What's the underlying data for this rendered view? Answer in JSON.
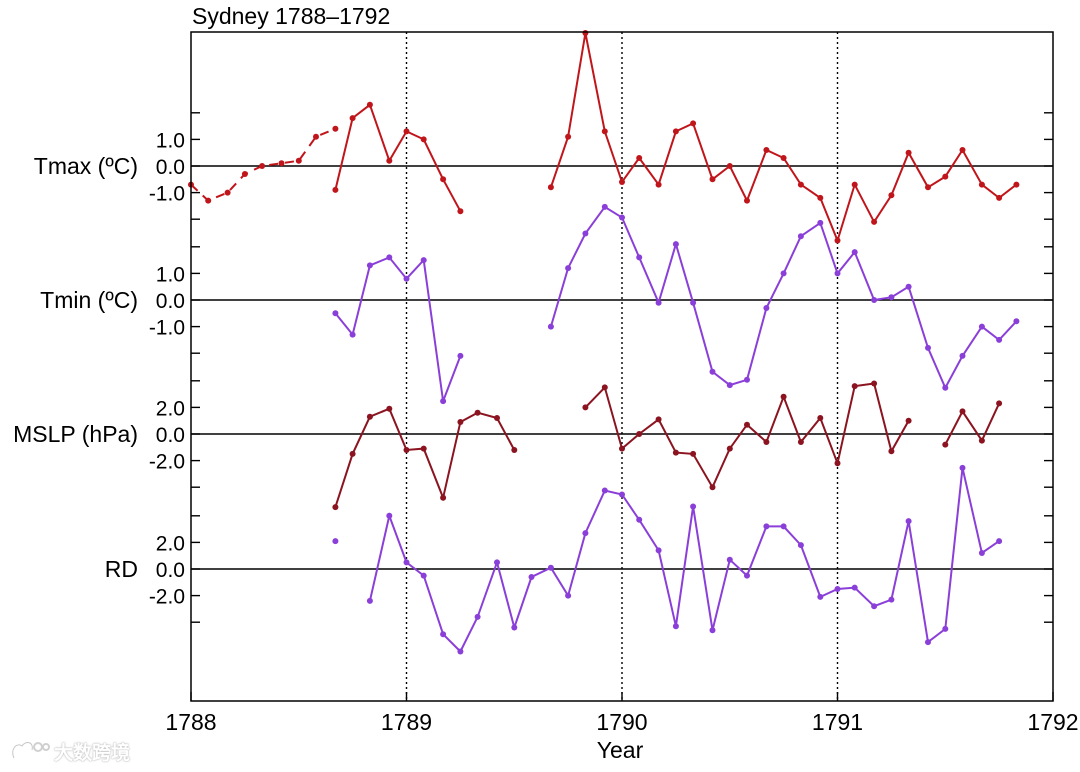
{
  "chart_data": {
    "type": "line",
    "title": "Sydney 1788–1792",
    "xlabel": "Year",
    "xlim": [
      1788,
      1792
    ],
    "x_ticks": [
      "1788",
      "1789",
      "1790",
      "1791",
      "1792"
    ],
    "vertical_reference_lines": [
      1789,
      1790,
      1791
    ],
    "panels": [
      {
        "label": "Tmax (ºC)",
        "y_ticks": [
          "1.0",
          "0.0",
          "-1.0"
        ],
        "color": "#c0161b",
        "dashed_segments": [
          [
            [
              1788.0,
              -0.7
            ],
            [
              1788.08,
              -1.3
            ],
            [
              1788.17,
              -1.0
            ],
            [
              1788.25,
              -0.3
            ],
            [
              1788.33,
              0.0
            ],
            [
              1788.42,
              0.1
            ],
            [
              1788.5,
              0.2
            ],
            [
              1788.58,
              1.1
            ],
            [
              1788.67,
              1.4
            ]
          ]
        ],
        "segments": [
          [
            [
              1788.67,
              -0.9
            ],
            [
              1788.75,
              1.8
            ],
            [
              1788.83,
              2.3
            ],
            [
              1788.92,
              0.2
            ],
            [
              1789.0,
              1.3
            ],
            [
              1789.08,
              1.0
            ],
            [
              1789.17,
              -0.5
            ],
            [
              1789.25,
              -1.7
            ]
          ],
          [
            [
              1789.67,
              -0.8
            ],
            [
              1789.75,
              1.1
            ],
            [
              1789.83,
              5.0
            ],
            [
              1789.92,
              1.3
            ],
            [
              1790.0,
              -0.6
            ],
            [
              1790.08,
              0.3
            ],
            [
              1790.17,
              -0.7
            ],
            [
              1790.25,
              1.3
            ],
            [
              1790.33,
              1.6
            ],
            [
              1790.42,
              -0.5
            ],
            [
              1790.5,
              0.0
            ],
            [
              1790.58,
              -1.3
            ],
            [
              1790.67,
              0.6
            ],
            [
              1790.75,
              0.3
            ],
            [
              1790.83,
              -0.7
            ],
            [
              1790.92,
              -1.2
            ],
            [
              1791.0,
              -2.8
            ],
            [
              1791.08,
              -0.7
            ],
            [
              1791.17,
              -2.1
            ],
            [
              1791.25,
              -1.1
            ],
            [
              1791.33,
              0.5
            ],
            [
              1791.42,
              -0.8
            ],
            [
              1791.5,
              -0.4
            ],
            [
              1791.58,
              0.6
            ],
            [
              1791.67,
              -0.7
            ],
            [
              1791.75,
              -1.2
            ],
            [
              1791.83,
              -0.7
            ]
          ]
        ]
      },
      {
        "label": "Tmin (ºC)",
        "y_ticks": [
          "1.0",
          "0.0",
          "-1.0"
        ],
        "color": "#8b3fd9",
        "dashed_segments": [],
        "segments": [
          [
            [
              1788.67,
              -0.5
            ],
            [
              1788.75,
              -1.3
            ],
            [
              1788.83,
              1.3
            ],
            [
              1788.92,
              1.6
            ],
            [
              1789.0,
              0.8
            ],
            [
              1789.08,
              1.5
            ],
            [
              1789.17,
              -3.8
            ],
            [
              1789.25,
              -2.1
            ]
          ],
          [
            [
              1789.67,
              -1.0
            ],
            [
              1789.75,
              1.2
            ],
            [
              1789.83,
              2.5
            ],
            [
              1789.92,
              3.5
            ],
            [
              1790.0,
              3.1
            ],
            [
              1790.08,
              1.6
            ],
            [
              1790.17,
              -0.1
            ],
            [
              1790.25,
              2.1
            ],
            [
              1790.33,
              -0.1
            ],
            [
              1790.42,
              -2.7
            ],
            [
              1790.5,
              -3.2
            ],
            [
              1790.58,
              -3.0
            ],
            [
              1790.67,
              -0.3
            ],
            [
              1790.75,
              1.0
            ],
            [
              1790.83,
              2.4
            ],
            [
              1790.92,
              2.9
            ],
            [
              1791.0,
              1.0
            ],
            [
              1791.08,
              1.8
            ],
            [
              1791.17,
              0.0
            ],
            [
              1791.25,
              0.1
            ],
            [
              1791.33,
              0.5
            ],
            [
              1791.42,
              -1.8
            ],
            [
              1791.5,
              -3.3
            ],
            [
              1791.58,
              -2.1
            ],
            [
              1791.67,
              -1.0
            ],
            [
              1791.75,
              -1.5
            ],
            [
              1791.83,
              -0.8
            ]
          ]
        ]
      },
      {
        "label": "MSLP (hPa)",
        "y_ticks": [
          "2.0",
          "0.0",
          "-2.0"
        ],
        "color": "#8b1420",
        "dashed_segments": [],
        "segments": [
          [
            [
              1788.67,
              -5.5
            ],
            [
              1788.75,
              -1.5
            ],
            [
              1788.83,
              1.3
            ],
            [
              1788.92,
              1.9
            ],
            [
              1789.0,
              -1.2
            ],
            [
              1789.08,
              -1.1
            ],
            [
              1789.17,
              -4.8
            ],
            [
              1789.25,
              0.9
            ],
            [
              1789.33,
              1.6
            ],
            [
              1789.42,
              1.2
            ],
            [
              1789.5,
              -1.2
            ]
          ],
          [
            [
              1789.83,
              2.0
            ],
            [
              1789.92,
              3.5
            ],
            [
              1790.0,
              -1.1
            ],
            [
              1790.08,
              0.0
            ],
            [
              1790.17,
              1.1
            ],
            [
              1790.25,
              -1.4
            ],
            [
              1790.33,
              -1.5
            ],
            [
              1790.42,
              -4.0
            ],
            [
              1790.5,
              -1.1
            ],
            [
              1790.58,
              0.7
            ],
            [
              1790.67,
              -0.6
            ],
            [
              1790.75,
              2.8
            ],
            [
              1790.83,
              -0.6
            ],
            [
              1790.92,
              1.2
            ],
            [
              1791.0,
              -2.2
            ],
            [
              1791.08,
              3.6
            ],
            [
              1791.17,
              3.8
            ],
            [
              1791.25,
              -1.3
            ],
            [
              1791.33,
              1.0
            ]
          ],
          [
            [
              1791.5,
              -0.8
            ],
            [
              1791.58,
              1.7
            ],
            [
              1791.67,
              -0.5
            ],
            [
              1791.75,
              2.3
            ]
          ]
        ]
      },
      {
        "label": "RD",
        "y_ticks": [
          "2.0",
          "0.0",
          "-2.0"
        ],
        "color": "#8b3fd9",
        "dashed_segments": [],
        "points": [
          [
            1788.67,
            2.1
          ]
        ],
        "segments": [
          [
            [
              1788.83,
              -2.4
            ],
            [
              1788.92,
              4.0
            ],
            [
              1789.0,
              0.5
            ],
            [
              1789.08,
              -0.5
            ],
            [
              1789.17,
              -4.9
            ],
            [
              1789.25,
              -6.2
            ],
            [
              1789.33,
              -3.6
            ],
            [
              1789.42,
              0.5
            ],
            [
              1789.5,
              -4.4
            ],
            [
              1789.58,
              -0.6
            ],
            [
              1789.67,
              0.1
            ],
            [
              1789.75,
              -2.0
            ],
            [
              1789.83,
              2.7
            ],
            [
              1789.92,
              5.9
            ],
            [
              1790.0,
              5.6
            ],
            [
              1790.08,
              3.7
            ],
            [
              1790.17,
              1.4
            ],
            [
              1790.25,
              -4.3
            ],
            [
              1790.33,
              4.7
            ],
            [
              1790.42,
              -4.6
            ],
            [
              1790.5,
              0.7
            ],
            [
              1790.58,
              -0.5
            ],
            [
              1790.67,
              3.2
            ],
            [
              1790.75,
              3.2
            ],
            [
              1790.83,
              1.8
            ],
            [
              1790.92,
              -2.1
            ],
            [
              1791.0,
              -1.5
            ],
            [
              1791.08,
              -1.4
            ],
            [
              1791.17,
              -2.8
            ],
            [
              1791.25,
              -2.3
            ],
            [
              1791.33,
              3.6
            ],
            [
              1791.42,
              -5.5
            ],
            [
              1791.5,
              -4.5
            ],
            [
              1791.58,
              7.6
            ],
            [
              1791.67,
              1.2
            ],
            [
              1791.75,
              2.1
            ]
          ]
        ]
      }
    ],
    "grid": false,
    "legend": "none"
  },
  "watermark": {
    "text": "大数跨境"
  }
}
